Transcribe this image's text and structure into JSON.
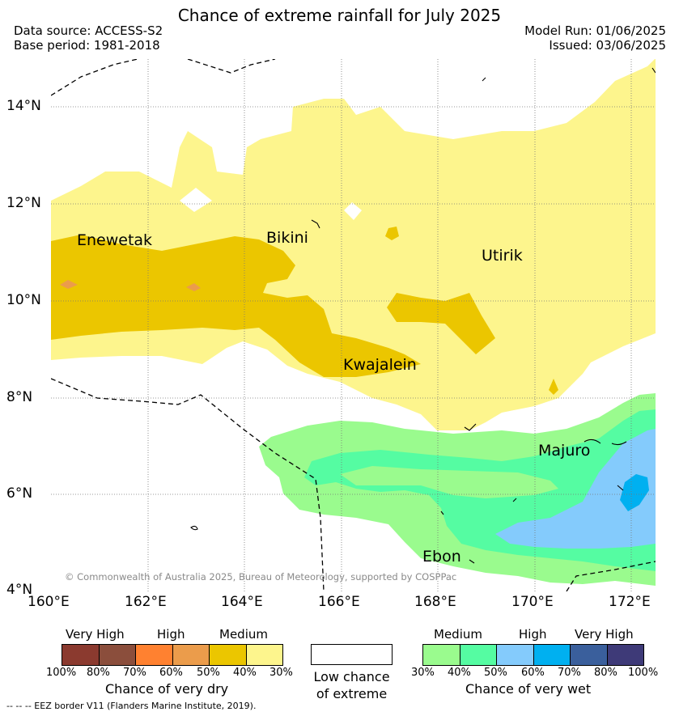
{
  "title": "Chance of extreme rainfall for July 2025",
  "data_source": "Data source: ACCESS-S2",
  "base_period": "Base period: 1981-2018",
  "model_run": "Model Run: 01/06/2025",
  "issued": "Issued: 03/06/2025",
  "copyright": "© Commonwealth of Australia 2025, Bureau of Meteorology, supported by COSPPac",
  "eez_note": "-- -- -- EEZ border V11 (Flanders Marine Institute, 2019).",
  "axes": {
    "x_ticks": [
      "160°E",
      "162°E",
      "164°E",
      "166°E",
      "168°E",
      "170°E",
      "172°E"
    ],
    "y_ticks": [
      "14°N",
      "12°N",
      "10°N",
      "8°N",
      "6°N",
      "4°N"
    ]
  },
  "places": [
    {
      "name": "Enewetak"
    },
    {
      "name": "Bikini"
    },
    {
      "name": "Utirik"
    },
    {
      "name": "Kwajalein"
    },
    {
      "name": "Majuro"
    },
    {
      "name": "Ebon"
    }
  ],
  "legend_dry": {
    "title": "Chance of very dry",
    "categories": [
      "Very High",
      "High",
      "Medium"
    ],
    "ticks": [
      "100%",
      "80%",
      "70%",
      "60%",
      "50%",
      "40%",
      "30%"
    ],
    "colors": [
      "#8b3a2f",
      "#8b4e3c",
      "#ff8130",
      "#eb9c4b",
      "#ebc600",
      "#fdf58d"
    ]
  },
  "legend_low": {
    "line1": "Low chance",
    "line2": "of extreme",
    "color": "#ffffff"
  },
  "legend_wet": {
    "title": "Chance of very wet",
    "categories": [
      "Medium",
      "High",
      "Very High"
    ],
    "ticks": [
      "30%",
      "40%",
      "50%",
      "60%",
      "70%",
      "80%",
      "100%"
    ],
    "colors": [
      "#9afb8e",
      "#55fca2",
      "#84cbfc",
      "#00b0f0",
      "#3a5f9c",
      "#3e3a78"
    ]
  },
  "colors": {
    "dry_medium_light": "#fdf58d",
    "dry_medium_dark": "#ebc600",
    "dry_high": "#eb9c4b",
    "wet_medium_light": "#9afb8e",
    "wet_medium_dark": "#55fca2",
    "wet_high_light": "#84cbfc",
    "wet_high_dark": "#00b0f0"
  }
}
